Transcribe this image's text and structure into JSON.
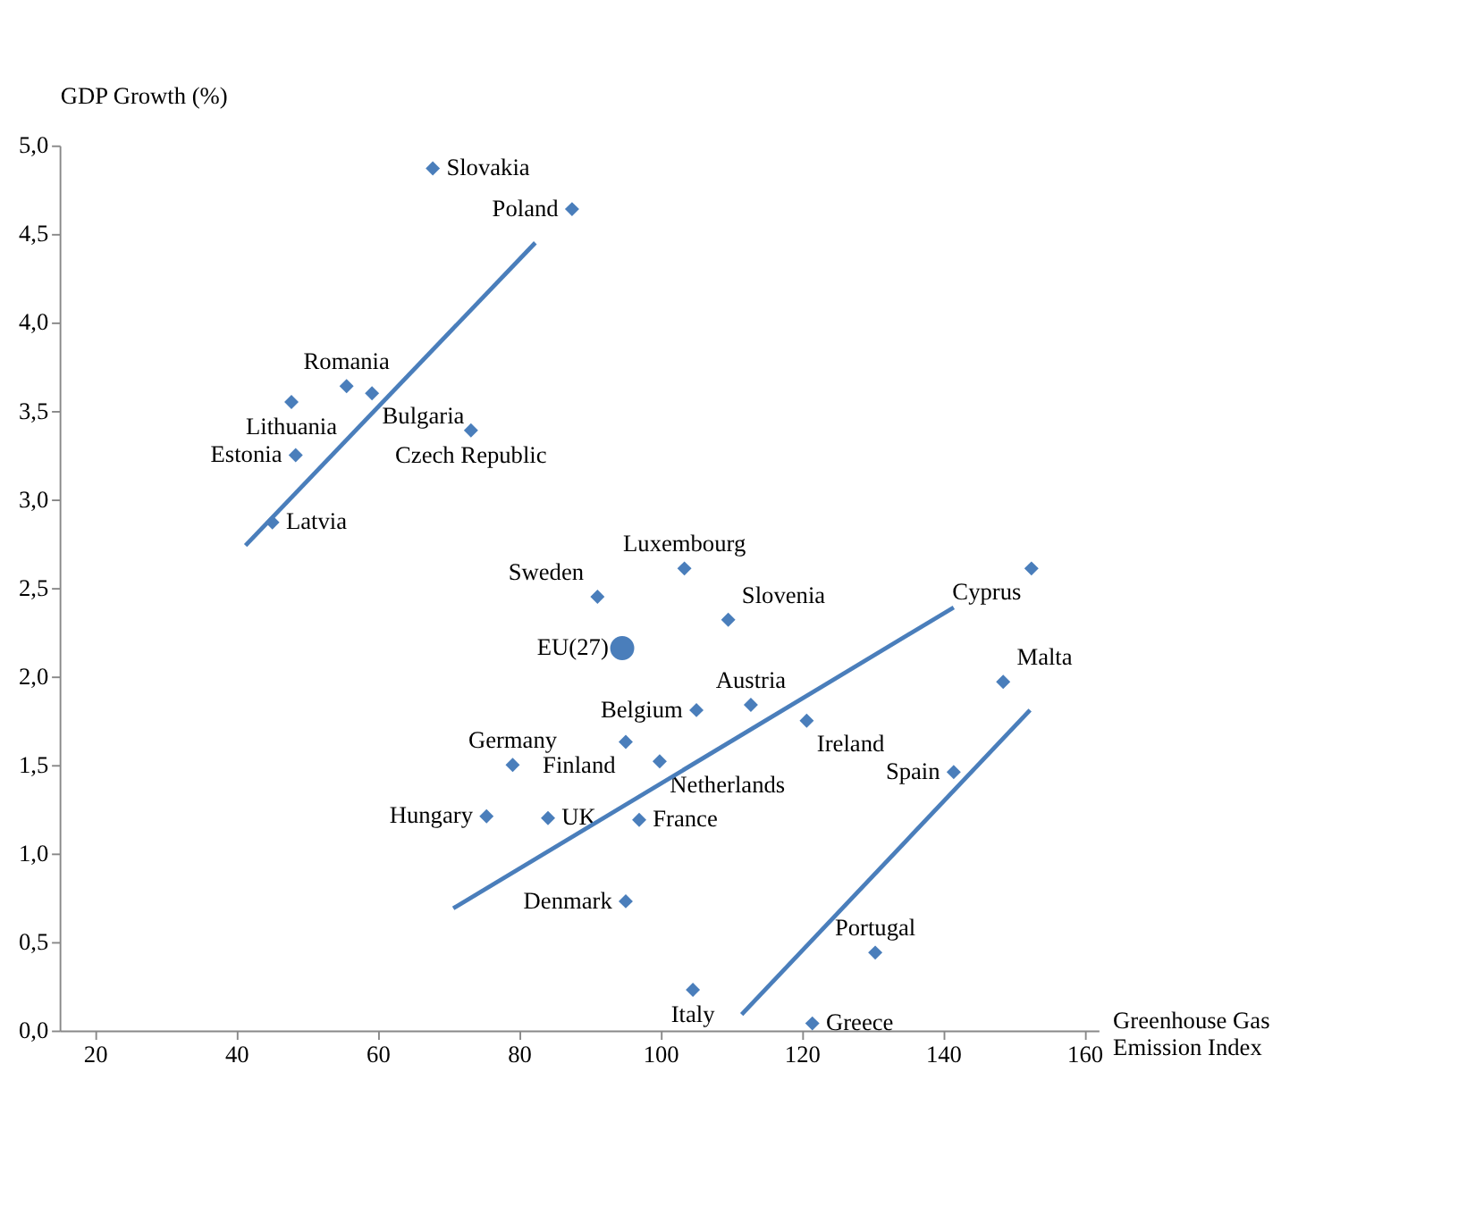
{
  "chart_data": {
    "type": "scatter",
    "xlabel": "Greenhouse Gas Emission Index",
    "ylabel": "GDP Growth (%)",
    "xlim": [
      15,
      162
    ],
    "xticks": [
      20,
      40,
      60,
      80,
      100,
      120,
      140,
      160
    ],
    "ylim": [
      0,
      5
    ],
    "yticks": [
      {
        "value": 0,
        "label": "0,0"
      },
      {
        "value": 0.5,
        "label": "0,5"
      },
      {
        "value": 1,
        "label": "1,0"
      },
      {
        "value": 1.5,
        "label": "1,5"
      },
      {
        "value": 2,
        "label": "2,0"
      },
      {
        "value": 2.5,
        "label": "2,5"
      },
      {
        "value": 3,
        "label": "3,0"
      },
      {
        "value": 3.5,
        "label": "3,5"
      },
      {
        "value": 4,
        "label": "4,0"
      },
      {
        "value": 4.5,
        "label": "4,5"
      },
      {
        "value": 5,
        "label": "5,0"
      }
    ],
    "grid": false,
    "series": [
      {
        "type": "scatter",
        "marker": "diamond",
        "color": "#4a7ebb",
        "x": [
          67.8,
          87.5,
          55.6,
          59.2,
          47.8,
          48.4,
          73.2,
          45.1,
          91.1,
          103.4,
          109.6,
          152.5,
          148.5,
          105.1,
          112.8,
          120.7,
          79.1,
          95.1,
          99.9,
          141.5,
          75.4,
          84.1,
          97.0,
          95.1,
          130.4,
          104.6,
          121.5
        ],
        "values": [
          4.87,
          4.64,
          3.64,
          3.6,
          3.55,
          3.25,
          3.39,
          2.87,
          2.45,
          2.61,
          2.32,
          2.61,
          1.97,
          1.81,
          1.84,
          1.75,
          1.5,
          1.63,
          1.52,
          1.46,
          1.21,
          1.2,
          1.19,
          0.73,
          0.44,
          0.23,
          0.04
        ],
        "value_labels": [
          "Slovakia",
          "Poland",
          "Romania",
          "Bulgaria",
          "Lithuania",
          "Estonia",
          "Czech Republic",
          "Latvia",
          "Sweden",
          "Luxembourg",
          "Slovenia",
          "Cyprus",
          "Malta",
          "Belgium",
          "Austria",
          "Ireland",
          "Germany",
          "Finland",
          "Netherlands",
          "Spain",
          "Hungary",
          "UK",
          "France",
          "Denmark",
          "Portugal",
          "Italy",
          "Greece"
        ]
      },
      {
        "type": "scatter",
        "marker": "circle",
        "color": "#4a7ebb",
        "x": [
          94.6
        ],
        "values": [
          2.16
        ],
        "value_labels": [
          "EU(27)"
        ]
      },
      {
        "type": "line",
        "color": "#4a7ebb",
        "x": [
          41.3,
          82.3
        ],
        "values": [
          2.74,
          4.45
        ]
      },
      {
        "type": "line",
        "color": "#4a7ebb",
        "x": [
          70.7,
          141.5
        ],
        "values": [
          0.69,
          2.39
        ]
      },
      {
        "type": "line",
        "color": "#4a7ebb",
        "x": [
          111.5,
          152.3
        ],
        "values": [
          0.09,
          1.81
        ]
      }
    ]
  }
}
